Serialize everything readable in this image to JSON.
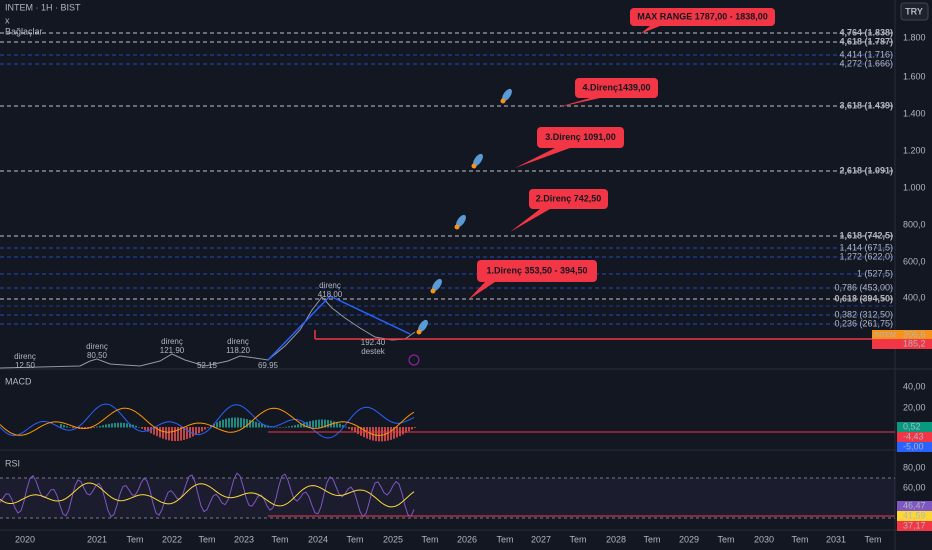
{
  "header": {
    "symbol": "INTEM · 1H · BIST",
    "close": "x",
    "indicator": "Bağlaçlar",
    "currency": "TRY"
  },
  "price_axis": [
    "1.800",
    "1.600",
    "1.400",
    "1.200",
    "1.000",
    "800,0",
    "600,0",
    "400,0"
  ],
  "fib_levels": [
    {
      "label": "4,764 (1.838)",
      "color": "#ffffff"
    },
    {
      "label": "4,618 (1.787)",
      "color": "#ffffff"
    },
    {
      "label": "4,414 (1.716)",
      "color": "#2962ff"
    },
    {
      "label": "4,272 (1.666)",
      "color": "#2962ff"
    },
    {
      "label": "3,618 (1.439)",
      "color": "#ffffff"
    },
    {
      "label": "2,618 (1.091)",
      "color": "#ffffff"
    },
    {
      "label": "1,618 (742,5)",
      "color": "#ffffff"
    },
    {
      "label": "1,414 (671,5)",
      "color": "#2962ff"
    },
    {
      "label": "1,272 (622,0)",
      "color": "#2962ff"
    },
    {
      "label": "1 (527,5)",
      "color": "#2962ff"
    },
    {
      "label": "0,786 (453,00)",
      "color": "#2962ff"
    },
    {
      "label": "0,618 (394,50)",
      "color": "#ffffff"
    },
    {
      "label": "0,382 (312,50)",
      "color": "#2962ff"
    },
    {
      "label": "0,236 (261,75)",
      "color": "#2962ff"
    }
  ],
  "price_tags": [
    {
      "name": "INTEM",
      "value": "206,6",
      "color": "#f7931a"
    },
    {
      "value": "185,2",
      "color": "#f23645"
    }
  ],
  "callouts": [
    "MAX RANGE 1787,00 - 1838,00",
    "4.Direnç1439,00",
    "3.Direnç 1091,00",
    "2.Direnç 742,50",
    "1.Direnç 353,50 - 394,50"
  ],
  "chart_labels": [
    [
      "direnç",
      "12.50"
    ],
    [
      "direnç",
      "80.50"
    ],
    [
      "direnç",
      "121.90"
    ],
    [
      "direnç",
      "118.20"
    ],
    [
      "52.15"
    ],
    [
      "69.95"
    ],
    [
      "direnç",
      "418.00"
    ],
    [
      "192.40",
      "destek"
    ]
  ],
  "macd": {
    "title": "MACD",
    "axis": [
      "40,00",
      "20,00"
    ],
    "tags": [
      {
        "value": "0,52",
        "color": "#089981"
      },
      {
        "value": "-4,43",
        "color": "#f23645"
      },
      {
        "value": "-5,00",
        "color": "#2962ff"
      }
    ]
  },
  "rsi": {
    "title": "RSI",
    "axis": [
      "80,00",
      "60,00"
    ],
    "tags": [
      {
        "value": "46,47",
        "color": "#7e57c2"
      },
      {
        "value": "41,59",
        "color": "#fdd835"
      },
      {
        "value": "37,17",
        "color": "#f23645"
      }
    ]
  },
  "time_axis": [
    "2020",
    "2021",
    "Tem",
    "2022",
    "Tem",
    "2023",
    "Tem",
    "2024",
    "Tem",
    "2025",
    "Tem",
    "2026",
    "Tem",
    "2027",
    "Tem",
    "2028",
    "Tem",
    "2029",
    "Tem",
    "2030",
    "Tem",
    "2031",
    "Tem"
  ]
}
